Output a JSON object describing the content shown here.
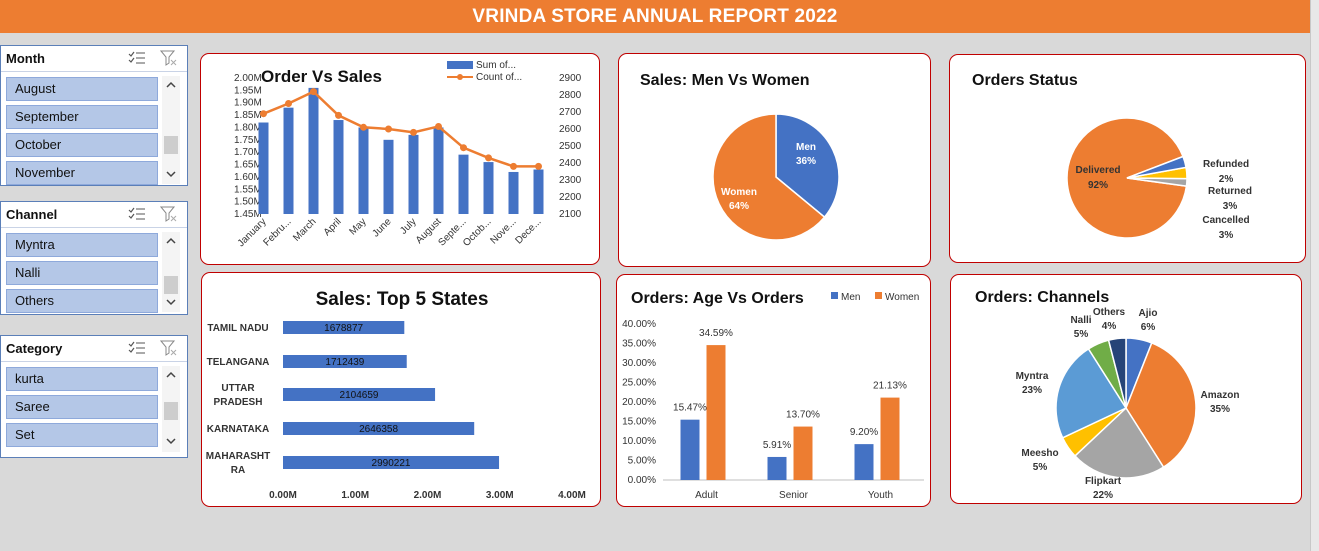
{
  "report_title": "VRINDA STORE ANNUAL REPORT 2022",
  "slicers": {
    "month": {
      "title": "Month",
      "items": [
        "August",
        "September",
        "October",
        "November"
      ]
    },
    "channel": {
      "title": "Channel",
      "items": [
        "Myntra",
        "Nalli",
        "Others"
      ]
    },
    "category": {
      "title": "Category",
      "items": [
        "kurta",
        "Saree",
        "Set"
      ]
    }
  },
  "icons": [
    "multi-select-icon",
    "clear-filter-icon",
    "scroll-up-icon",
    "scroll-down-icon"
  ],
  "colors": {
    "accent": "#ed7d31",
    "blue": "#4472c4",
    "border": "#c00000",
    "gray": "#a5a5a5",
    "yellow": "#ffc000",
    "lightblue": "#5b9bd5",
    "green": "#70ad47",
    "navy": "#264478"
  },
  "chart_data": [
    {
      "id": "order-vs-sales",
      "type": "bar+line",
      "title": "Order Vs Sales",
      "legend": [
        "Sum of...",
        "Count of..."
      ],
      "categories": [
        "January",
        "Febru...",
        "March",
        "April",
        "May",
        "June",
        "July",
        "August",
        "Septe...",
        "Octob...",
        "Nove...",
        "Dece..."
      ],
      "series": [
        {
          "name": "Sum of...",
          "axis": "left",
          "values": [
            1.82,
            1.88,
            1.96,
            1.83,
            1.8,
            1.75,
            1.77,
            1.8,
            1.69,
            1.66,
            1.62,
            1.63
          ]
        },
        {
          "name": "Count of...",
          "axis": "right",
          "values": [
            2690,
            2750,
            2820,
            2680,
            2610,
            2600,
            2580,
            2615,
            2490,
            2430,
            2380,
            2380
          ]
        }
      ],
      "left_ticks": [
        "2.00M",
        "1.95M",
        "1.90M",
        "1.85M",
        "1.80M",
        "1.75M",
        "1.70M",
        "1.65M",
        "1.60M",
        "1.55M",
        "1.50M",
        "1.45M"
      ],
      "right_ticks": [
        "2900",
        "2800",
        "2700",
        "2600",
        "2500",
        "2400",
        "2300",
        "2200",
        "2100"
      ],
      "ylim_left": [
        1.45,
        2.0
      ],
      "ylim_right": [
        2100,
        2900
      ]
    },
    {
      "id": "sales-men-women",
      "type": "pie",
      "title": "Sales: Men Vs Women",
      "slices": [
        {
          "label": "Men",
          "pct_label": "36%",
          "value": 36
        },
        {
          "label": "Women",
          "pct_label": "64%",
          "value": 64
        }
      ]
    },
    {
      "id": "orders-status",
      "type": "pie",
      "title": "Orders Status",
      "slices": [
        {
          "label": "Delivered",
          "pct_label": "92%",
          "value": 92
        },
        {
          "label": "Refunded",
          "pct_label": "2%",
          "value": 2
        },
        {
          "label": "Returned",
          "pct_label": "3%",
          "value": 3
        },
        {
          "label": "Cancelled",
          "pct_label": "3%",
          "value": 3
        }
      ]
    },
    {
      "id": "top-5-states",
      "type": "bar",
      "orientation": "horizontal",
      "title": "Sales: Top 5 States",
      "categories": [
        "TAMIL NADU",
        "TELANGANA",
        "UTTAR PRADESH",
        "KARNATAKA",
        "MAHARASHTRA"
      ],
      "category_lines": [
        [
          "TAMIL NADU"
        ],
        [
          "TELANGANA"
        ],
        [
          "UTTAR",
          "PRADESH"
        ],
        [
          "KARNATAKA"
        ],
        [
          "MAHARASHT",
          "RA"
        ]
      ],
      "values": [
        1678877,
        1712439,
        2104659,
        2646358,
        2990221
      ],
      "value_labels": [
        "1678877",
        "1712439",
        "2104659",
        "2646358",
        "2990221"
      ],
      "x_ticks": [
        "0.00M",
        "1.00M",
        "2.00M",
        "3.00M",
        "4.00M"
      ],
      "xlim": [
        0,
        4000000
      ]
    },
    {
      "id": "age-vs-orders",
      "type": "bar",
      "title": "Orders: Age Vs Orders",
      "legend": [
        "Men",
        "Women"
      ],
      "categories": [
        "Adult",
        "Senior",
        "Youth"
      ],
      "series": [
        {
          "name": "Men",
          "values": [
            15.47,
            5.91,
            9.2
          ],
          "labels": [
            "15.47%",
            "5.91%",
            "9.20%"
          ]
        },
        {
          "name": "Women",
          "values": [
            34.59,
            13.7,
            21.13
          ],
          "labels": [
            "34.59%",
            "13.70%",
            "21.13%"
          ]
        }
      ],
      "y_ticks": [
        "40.00%",
        "35.00%",
        "30.00%",
        "25.00%",
        "20.00%",
        "15.00%",
        "10.00%",
        "5.00%",
        "0.00%"
      ],
      "ylim": [
        0,
        40
      ]
    },
    {
      "id": "orders-channels",
      "type": "pie",
      "title": "Orders: Channels",
      "slices": [
        {
          "label": "Ajio",
          "pct_label": "6%",
          "value": 6
        },
        {
          "label": "Amazon",
          "pct_label": "35%",
          "value": 35
        },
        {
          "label": "Flipkart",
          "pct_label": "22%",
          "value": 22
        },
        {
          "label": "Meesho",
          "pct_label": "5%",
          "value": 5
        },
        {
          "label": "Myntra",
          "pct_label": "23%",
          "value": 23
        },
        {
          "label": "Nalli",
          "pct_label": "5%",
          "value": 5
        },
        {
          "label": "Others",
          "pct_label": "4%",
          "value": 4
        }
      ]
    }
  ]
}
